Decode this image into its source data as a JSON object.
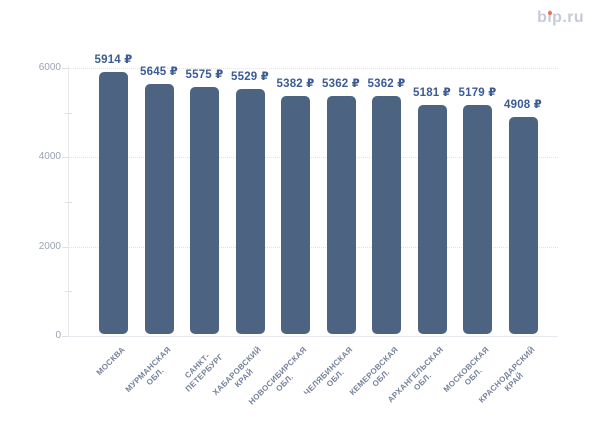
{
  "logo": {
    "text": "bip.ru",
    "dot_color": "#ee6f52",
    "text_color": "#c5cad6"
  },
  "colors": {
    "bar": "#4c6382",
    "value_label": "#3b5b95",
    "x_label": "#76829b",
    "y_label": "#9ba3b2",
    "grid": "#dfe2e8",
    "axis": "#e7e9ee"
  },
  "chart_data": {
    "type": "bar",
    "title": "",
    "xlabel": "",
    "ylabel": "",
    "categories": [
      "МОСКВА",
      "МУРМАНСКАЯ\nОБЛ.",
      "САНКТ-\nПЕТЕРБУРГ",
      "ХАБАРОВСКИЙ\nКРАЙ",
      "НОВОСИБИРСКАЯ\nОБЛ.",
      "ЧЕЛЯБИНСКАЯ\nОБЛ.",
      "КЕМЕРОВСКАЯ\nОБЛ.",
      "АРХАНГЕЛЬСКАЯ\nОБЛ.",
      "МОСКОВСКАЯ\nОБЛ.",
      "КРАСНОДАРСКИЙ\nКРАЙ"
    ],
    "values": [
      5914,
      5645,
      5575,
      5529,
      5382,
      5362,
      5362,
      5181,
      5179,
      4908
    ],
    "value_labels": [
      "5914 ₽",
      "5645 ₽",
      "5575 ₽",
      "5529 ₽",
      "5382 ₽",
      "5362 ₽",
      "5362 ₽",
      "5181 ₽",
      "5179 ₽",
      "4908 ₽"
    ],
    "currency_suffix": "₽",
    "ylim": [
      0,
      6000
    ],
    "yticks": [
      0,
      2000,
      4000,
      6000
    ],
    "ytick_labels": [
      "0",
      "2000",
      "4000",
      "6000"
    ],
    "minor_yticks": [
      1000,
      3000,
      5000
    ],
    "grid": "horizontal-dotted",
    "legend": "none",
    "bar_corner_radius": 5
  }
}
